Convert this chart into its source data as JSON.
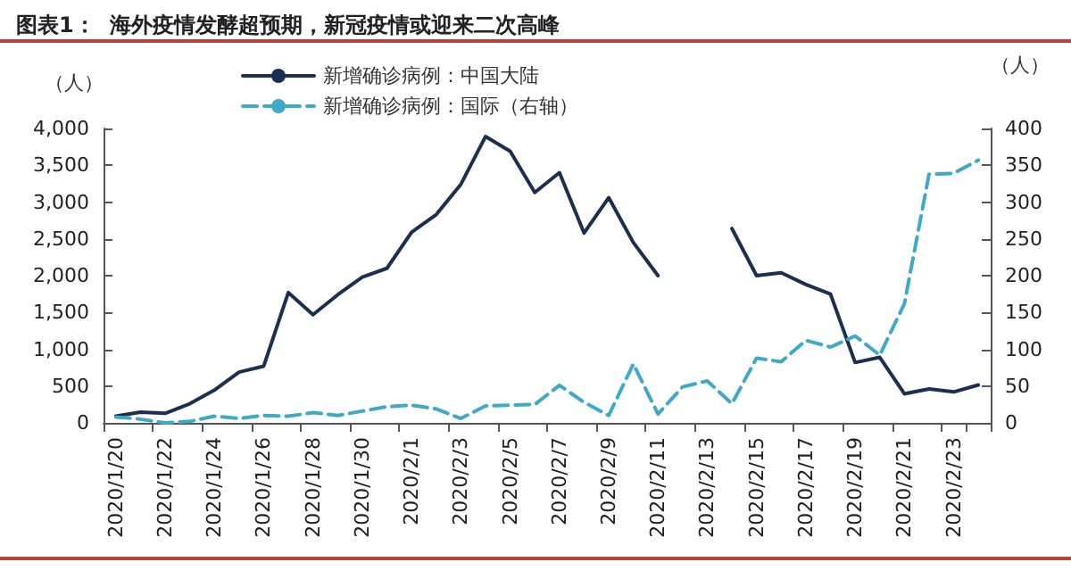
{
  "chart_data": {
    "type": "line",
    "title": "图表1：  海外疫情发酵超预期，新冠疫情或迎来二次高峰",
    "ylabel": "（人）",
    "y2label": "（人）",
    "categories": [
      "2020/1/20",
      null,
      "2020/1/22",
      null,
      "2020/1/24",
      null,
      "2020/1/26",
      null,
      "2020/1/28",
      null,
      "2020/1/30",
      null,
      "2020/2/1",
      null,
      "2020/2/3",
      null,
      "2020/2/5",
      null,
      "2020/2/7",
      null,
      "2020/2/9",
      null,
      "2020/2/11",
      null,
      "2020/2/13",
      null,
      "2020/2/15",
      null,
      "2020/2/17",
      null,
      "2020/2/19",
      null,
      "2020/2/21",
      null,
      "2020/2/23",
      null
    ],
    "series": [
      {
        "name": "新增确诊病例：中国大陆",
        "color": "#1b2f52",
        "line_style": "solid",
        "values": [
          90,
          145,
          130,
          260,
          445,
          690,
          770,
          1770,
          1470,
          1740,
          1980,
          2100,
          2590,
          2830,
          3240,
          3890,
          3690,
          3130,
          3400,
          2580,
          3060,
          2450,
          2000,
          null,
          null,
          2640,
          2000,
          2040,
          1880,
          1750,
          820,
          890,
          395,
          460,
          420,
          515
        ]
      },
      {
        "name": "新增确诊病例：国际（右轴）",
        "color": "#3fa9c9",
        "line_style": "dashed",
        "axis": "y2",
        "values": [
          8,
          5,
          0,
          2,
          9,
          6,
          10,
          9,
          14,
          10,
          16,
          22,
          24,
          19,
          6,
          23,
          24,
          25,
          51,
          28,
          10,
          80,
          12,
          49,
          57,
          26,
          88,
          83,
          112,
          103,
          118,
          92,
          162,
          338,
          339,
          357
        ]
      }
    ],
    "ylim": [
      0,
      4000
    ],
    "yticks": [
      0,
      500,
      {
        "value": 1000,
        "label": "1,000"
      },
      {
        "value": 1500,
        "label": "1,500"
      },
      {
        "value": 2000,
        "label": "2,000"
      },
      {
        "value": 2500,
        "label": "2,500"
      },
      {
        "value": 3000,
        "label": "3,000"
      },
      {
        "value": 3500,
        "label": "3,500"
      },
      {
        "value": 4000,
        "label": "4,000"
      }
    ],
    "y2lim": [
      0,
      400
    ],
    "y2ticks": [
      0,
      50,
      100,
      150,
      200,
      250,
      300,
      350,
      400
    ],
    "grid": false,
    "legend": "top",
    "marker": "none"
  }
}
